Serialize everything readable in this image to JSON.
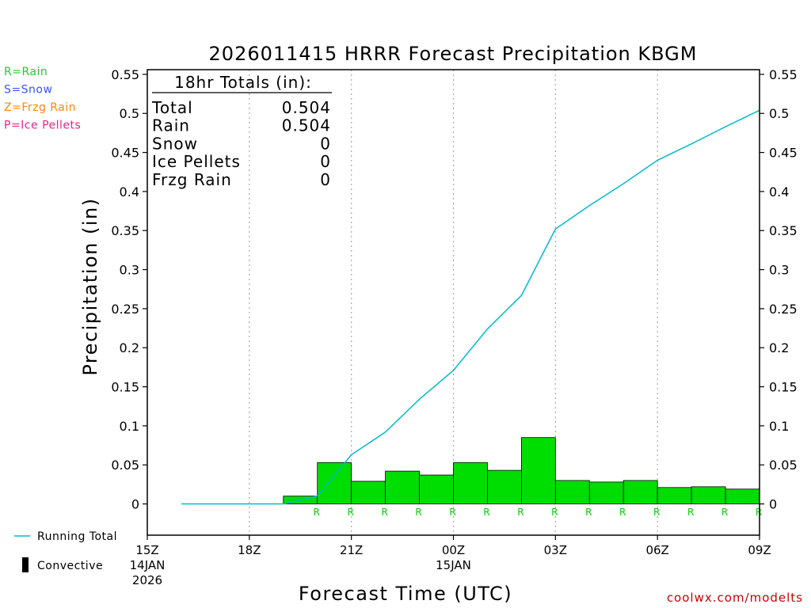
{
  "colors": {
    "rain": "#00cc00",
    "snow": "#3355ff",
    "frzg_rain": "#ff8800",
    "ice_pellets": "#ee2288",
    "running_total": "#00bbcc",
    "bar": "#00dd00",
    "credit": "#cc0000"
  },
  "legend_top": [
    {
      "label": "R=Rain",
      "color": "#22cc22"
    },
    {
      "label": "S=Snow",
      "color": "#3355ff"
    },
    {
      "label": "Z=Frzg Rain",
      "color": "#ff8800"
    },
    {
      "label": "P=Ice Pellets",
      "color": "#ee2288"
    }
  ],
  "legend_bottom": {
    "running_total": "Running Total",
    "convective": "Convective"
  },
  "totals_box": {
    "heading": "18hr Totals (in):",
    "rows": [
      {
        "label": "Total",
        "value": "0.504"
      },
      {
        "label": "Rain",
        "value": "0.504"
      },
      {
        "label": "Snow",
        "value": "0"
      },
      {
        "label": "Ice Pellets",
        "value": "0"
      },
      {
        "label": "Frzg Rain",
        "value": "0"
      }
    ]
  },
  "credit": "coolwx.com/modelts",
  "chart_data": {
    "type": "bar",
    "title": "2026011415 HRRR Forecast Precipitation KBGM",
    "xlabel": "Forecast Time (UTC)",
    "ylabel": "Precipitation (in)",
    "ylim": [
      -0.04,
      0.556
    ],
    "xlim": [
      0,
      18
    ],
    "yticks": [
      "0",
      "0.05",
      "0.1",
      "0.15",
      "0.2",
      "0.25",
      "0.3",
      "0.35",
      "0.4",
      "0.45",
      "0.5",
      "0.55"
    ],
    "xticks": [
      {
        "t": 0,
        "lines": [
          "15Z",
          "14JAN",
          "2026"
        ]
      },
      {
        "t": 3,
        "lines": [
          "18Z"
        ]
      },
      {
        "t": 6,
        "lines": [
          "21Z"
        ]
      },
      {
        "t": 9,
        "lines": [
          "00Z",
          "15JAN"
        ]
      },
      {
        "t": 12,
        "lines": [
          "03Z"
        ]
      },
      {
        "t": 15,
        "lines": [
          "06Z"
        ]
      },
      {
        "t": 18,
        "lines": [
          "09Z"
        ]
      }
    ],
    "gridlines_x": [
      3,
      6,
      9,
      12,
      15
    ],
    "hourly_bars": {
      "hour_end": [
        5,
        6,
        7,
        8,
        9,
        10,
        11,
        12,
        13,
        14,
        15,
        16,
        17,
        18
      ],
      "values": [
        0.01,
        0.053,
        0.029,
        0.042,
        0.037,
        0.053,
        0.043,
        0.085,
        0.03,
        0.028,
        0.03,
        0.021,
        0.022,
        0.019
      ],
      "ptype": [
        "R",
        "R",
        "R",
        "R",
        "R",
        "R",
        "R",
        "R",
        "R",
        "R",
        "R",
        "R",
        "R",
        "R"
      ]
    },
    "running_total": {
      "x": [
        1,
        2,
        3,
        4,
        5,
        6,
        7,
        8,
        9,
        10,
        11,
        12,
        13,
        14,
        15,
        16,
        17,
        18
      ],
      "y": [
        0,
        0,
        0,
        0,
        0.01,
        0.063,
        0.092,
        0.134,
        0.171,
        0.224,
        0.267,
        0.352,
        0.382,
        0.41,
        0.44,
        0.461,
        0.483,
        0.504
      ]
    },
    "grid": "vertical dotted",
    "legend": "left margin"
  }
}
